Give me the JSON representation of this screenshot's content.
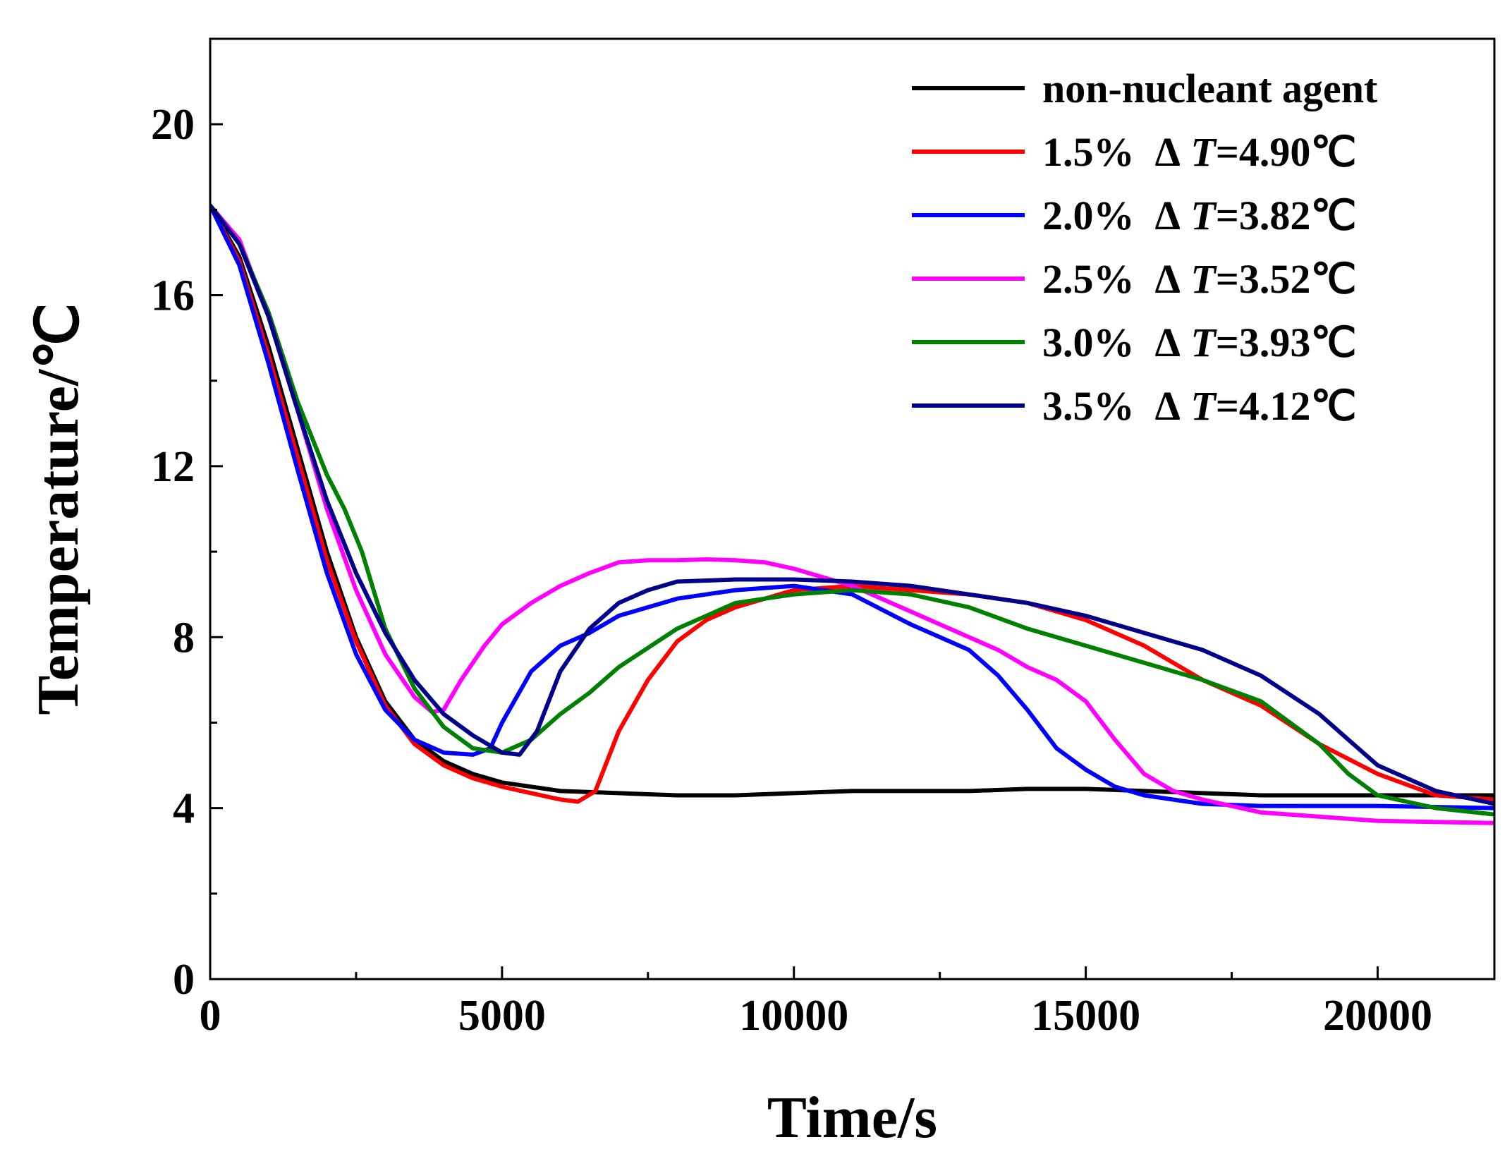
{
  "chart_data": {
    "type": "line",
    "xlabel": "Time/s",
    "ylabel": "Temperature/℃",
    "xlim": [
      0,
      22000
    ],
    "ylim": [
      0,
      22
    ],
    "xticks": [
      0,
      5000,
      10000,
      15000,
      20000
    ],
    "xticks_minor": [
      2500,
      7500,
      12500,
      17500
    ],
    "yticks": [
      0,
      4,
      8,
      12,
      16,
      20
    ],
    "yticks_minor": [
      2,
      6,
      10,
      14,
      18
    ],
    "grid": false,
    "legend_position": "top-right",
    "series": [
      {
        "name": "non-nucleant agent",
        "color": "#000000",
        "label": {
          "pct": "non-nucleant agent",
          "delta": "",
          "var": "",
          "value": ""
        },
        "x": [
          0,
          500,
          1000,
          1500,
          2000,
          2500,
          3000,
          3500,
          4000,
          4500,
          5000,
          5500,
          6000,
          7000,
          8000,
          9000,
          10000,
          11000,
          12000,
          13000,
          14000,
          15000,
          16000,
          17000,
          18000,
          19000,
          20000,
          21000,
          22000
        ],
        "y": [
          18.1,
          16.9,
          14.8,
          12.4,
          10.0,
          8.0,
          6.5,
          5.6,
          5.1,
          4.8,
          4.6,
          4.5,
          4.4,
          4.35,
          4.3,
          4.3,
          4.35,
          4.4,
          4.4,
          4.4,
          4.45,
          4.45,
          4.4,
          4.35,
          4.3,
          4.3,
          4.3,
          4.3,
          4.3
        ]
      },
      {
        "name": "1.5%  ΔT=4.90℃",
        "color": "#ff0000",
        "label": {
          "pct": "1.5%",
          "delta": "Δ",
          "var": "T",
          "value": "=4.90℃"
        },
        "x": [
          0,
          500,
          1000,
          1500,
          2000,
          2500,
          3000,
          3500,
          4000,
          4500,
          5000,
          5500,
          6000,
          6300,
          6600,
          7000,
          7500,
          8000,
          8500,
          9000,
          10000,
          11000,
          12000,
          13000,
          14000,
          15000,
          16000,
          17000,
          18000,
          19000,
          20000,
          21000,
          22000
        ],
        "y": [
          18.1,
          16.8,
          14.6,
          12.2,
          9.8,
          7.9,
          6.4,
          5.5,
          5.0,
          4.7,
          4.5,
          4.35,
          4.2,
          4.15,
          4.4,
          5.8,
          7.0,
          7.9,
          8.4,
          8.7,
          9.1,
          9.2,
          9.1,
          9.0,
          8.8,
          8.4,
          7.8,
          7.0,
          6.4,
          5.5,
          4.8,
          4.3,
          4.2
        ]
      },
      {
        "name": "2.0%  ΔT=3.82℃",
        "color": "#0000ff",
        "label": {
          "pct": "2.0%",
          "delta": "Δ",
          "var": "T",
          "value": "=3.82℃"
        },
        "x": [
          0,
          500,
          1000,
          1500,
          2000,
          2500,
          3000,
          3500,
          4000,
          4500,
          4800,
          5000,
          5500,
          6000,
          6500,
          7000,
          8000,
          9000,
          10000,
          11000,
          12000,
          13000,
          13500,
          14000,
          14500,
          15000,
          15500,
          16000,
          17000,
          18000,
          20000,
          22000
        ],
        "y": [
          18.1,
          16.7,
          14.4,
          11.9,
          9.5,
          7.6,
          6.3,
          5.6,
          5.3,
          5.25,
          5.4,
          6.0,
          7.2,
          7.8,
          8.1,
          8.5,
          8.9,
          9.1,
          9.2,
          9.0,
          8.3,
          7.7,
          7.1,
          6.3,
          5.4,
          4.9,
          4.5,
          4.3,
          4.1,
          4.05,
          4.05,
          4.0
        ]
      },
      {
        "name": "2.5%  ΔT=3.52℃",
        "color": "#ff00ff",
        "label": {
          "pct": "2.5%",
          "delta": "Δ",
          "var": "T",
          "value": "=3.52℃"
        },
        "x": [
          0,
          500,
          1000,
          1500,
          2000,
          2500,
          3000,
          3500,
          3800,
          4000,
          4300,
          4700,
          5000,
          5500,
          6000,
          6500,
          7000,
          7500,
          8000,
          8500,
          9000,
          9500,
          10000,
          10500,
          11000,
          12000,
          13000,
          13500,
          14000,
          14500,
          15000,
          15500,
          16000,
          16500,
          17000,
          18000,
          19000,
          20000,
          22000
        ],
        "y": [
          18.1,
          17.3,
          15.5,
          13.3,
          11.0,
          9.1,
          7.6,
          6.6,
          6.25,
          6.3,
          7.0,
          7.8,
          8.3,
          8.8,
          9.2,
          9.5,
          9.75,
          9.8,
          9.8,
          9.82,
          9.8,
          9.75,
          9.6,
          9.4,
          9.2,
          8.6,
          8.0,
          7.7,
          7.3,
          7.0,
          6.5,
          5.6,
          4.8,
          4.4,
          4.2,
          3.9,
          3.8,
          3.7,
          3.65
        ]
      },
      {
        "name": "3.0%  ΔT=3.93℃",
        "color": "#008000",
        "label": {
          "pct": "3.0%",
          "delta": "Δ",
          "var": "T",
          "value": "=3.93℃"
        },
        "x": [
          0,
          500,
          1000,
          1500,
          2000,
          2300,
          2600,
          3000,
          3500,
          4000,
          4500,
          5000,
          5500,
          6000,
          6500,
          7000,
          8000,
          9000,
          10000,
          11000,
          12000,
          13000,
          14000,
          15000,
          16000,
          17000,
          18000,
          19000,
          19500,
          20000,
          21000,
          22000
        ],
        "y": [
          18.1,
          17.2,
          15.6,
          13.5,
          11.8,
          11.0,
          10.0,
          8.2,
          6.8,
          5.9,
          5.4,
          5.3,
          5.6,
          6.2,
          6.7,
          7.3,
          8.2,
          8.8,
          9.0,
          9.1,
          9.0,
          8.7,
          8.2,
          7.8,
          7.4,
          7.0,
          6.5,
          5.5,
          4.8,
          4.3,
          4.0,
          3.85
        ]
      },
      {
        "name": "3.5%  ΔT=4.12℃",
        "color": "#00008b",
        "label": {
          "pct": "3.5%",
          "delta": "Δ",
          "var": "T",
          "value": "=4.12℃"
        },
        "x": [
          0,
          500,
          1000,
          1500,
          2000,
          2500,
          3000,
          3500,
          4000,
          4500,
          5000,
          5300,
          5600,
          6000,
          6500,
          7000,
          7500,
          8000,
          9000,
          10000,
          11000,
          12000,
          13000,
          14000,
          15000,
          16000,
          17000,
          18000,
          19000,
          19500,
          20000,
          21000,
          22000
        ],
        "y": [
          18.1,
          17.2,
          15.5,
          13.3,
          11.2,
          9.5,
          8.1,
          7.0,
          6.2,
          5.7,
          5.3,
          5.25,
          5.8,
          7.2,
          8.2,
          8.8,
          9.1,
          9.3,
          9.35,
          9.35,
          9.3,
          9.2,
          9.0,
          8.8,
          8.5,
          8.1,
          7.7,
          7.1,
          6.2,
          5.6,
          5.0,
          4.4,
          4.1
        ]
      }
    ]
  }
}
